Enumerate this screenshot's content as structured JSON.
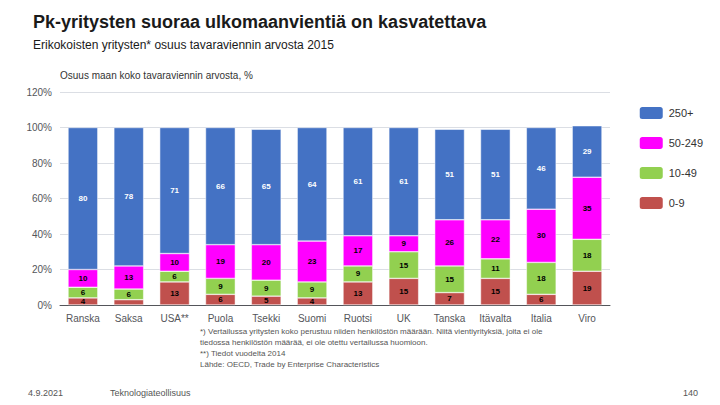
{
  "chart_data": {
    "type": "bar",
    "stacked": true,
    "title": "Pk-yritysten suoraa ulkomaanvientiä on kasvatettava",
    "subtitle": "Erikokoisten yritysten* osuus tavaraviennin arvosta 2015",
    "ylabel": "Osuus maan koko tavaraviennin arvosta, %",
    "categories": [
      "Ranska",
      "Saksa",
      "USA**",
      "Puola",
      "Tsekki",
      "Suomi",
      "Ruotsi",
      "UK",
      "Tanska",
      "Itävalta",
      "Italia",
      "Viro"
    ],
    "series": [
      {
        "name": "0-9",
        "color": "#C0504D",
        "values": [
          4,
          3,
          13,
          6,
          5,
          4,
          13,
          15,
          7,
          15,
          6,
          19
        ],
        "value_labels": [
          "4",
          null,
          "13",
          "6",
          "5",
          "4",
          "13",
          "15",
          "7",
          "15",
          "6",
          "19"
        ]
      },
      {
        "name": "10-49",
        "color": "#92D050",
        "values": [
          6,
          6,
          6,
          9,
          9,
          9,
          9,
          15,
          15,
          11,
          18,
          18
        ]
      },
      {
        "name": "50-249",
        "color": "#FF00FF",
        "values": [
          10,
          13,
          10,
          19,
          20,
          23,
          17,
          9,
          26,
          22,
          30,
          35
        ]
      },
      {
        "name": "250+",
        "color": "#4472C4",
        "values": [
          80,
          78,
          71,
          66,
          65,
          64,
          61,
          61,
          51,
          51,
          46,
          29
        ]
      }
    ],
    "ylim": [
      0,
      120
    ],
    "yticks": [
      {
        "value": 0,
        "label": "0%"
      },
      {
        "value": 20,
        "label": "20%"
      },
      {
        "value": 40,
        "label": "40%"
      },
      {
        "value": 60,
        "label": "60%"
      },
      {
        "value": 80,
        "label": "80%"
      },
      {
        "value": 100,
        "label": "100%"
      },
      {
        "value": 120,
        "label": "120%"
      }
    ],
    "grid": true,
    "legend": "right",
    "data_labels": true,
    "annotations": [
      "*) Vertailussa yritysten koko perustuu niiden henkilöstön määrään. Niitä vientiyrityksiä, joita ei ole\ntiedossa henkilöstön määrää, ei ole otettu vertailussa huomioon.\n**) Tiedot vuodelta 2014\nLähde: OECD, Trade by Enterprise Characteristics",
      "4.9.2021",
      "Teknologiateollisuus",
      "140"
    ]
  }
}
